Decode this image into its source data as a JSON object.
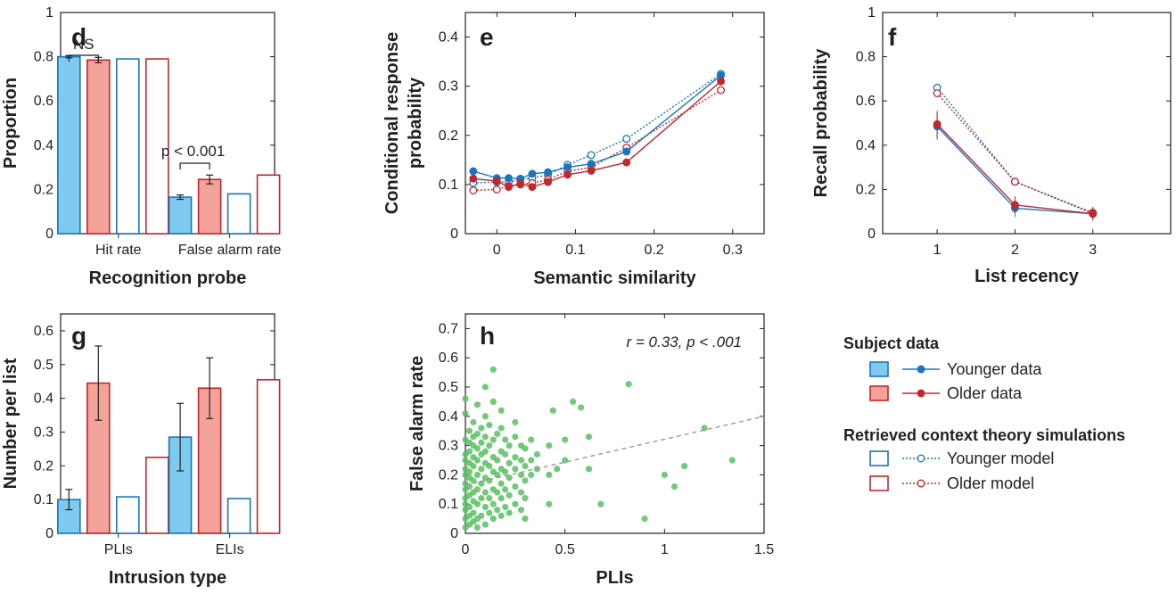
{
  "colors": {
    "young_fill": "#7ecbef",
    "young_edge": "#1b75bb",
    "old_fill": "#f4a39a",
    "old_edge": "#c1272d",
    "model_young": "#1b75bb",
    "model_old": "#c1272d",
    "scatter": "#5bbf63",
    "fit": "#999999"
  },
  "legend": {
    "subject_heading": "Subject data",
    "younger_data": "Younger data",
    "older_data": "Older data",
    "model_heading": "Retrieved context theory simulations",
    "younger_model": "Younger model",
    "older_model": "Older model"
  },
  "chart_data": [
    {
      "panel": "d",
      "type": "bar",
      "ylabel": "Proportion",
      "xlabel": "Recognition probe",
      "categories": [
        "Hit rate",
        "False alarm rate"
      ],
      "ylim": [
        0,
        1
      ],
      "yticks": [
        "0",
        "0.2",
        "0.4",
        "0.6",
        "0.8",
        "1"
      ],
      "series": [
        {
          "name": "Younger data",
          "values": [
            0.8,
            0.165
          ],
          "err": [
            0.005,
            0.01
          ]
        },
        {
          "name": "Older data",
          "values": [
            0.785,
            0.245
          ],
          "err": [
            0.012,
            0.02
          ]
        },
        {
          "name": "Younger model",
          "values": [
            0.79,
            0.18
          ]
        },
        {
          "name": "Older model",
          "values": [
            0.79,
            0.265
          ]
        }
      ],
      "annotations": [
        "NS",
        "p < 0.001"
      ]
    },
    {
      "panel": "e",
      "type": "line",
      "ylabel_line1": "Conditional response",
      "ylabel_line2": "probability",
      "xlabel": "Semantic similarity",
      "xlim": [
        -0.04,
        0.34
      ],
      "ylim": [
        0,
        0.45
      ],
      "xticks": [
        "0",
        "0.1",
        "0.2",
        "0.3"
      ],
      "yticks": [
        "0",
        "0.1",
        "0.2",
        "0.3",
        "0.4"
      ],
      "x": [
        -0.03,
        0,
        0.015,
        0.03,
        0.045,
        0.065,
        0.09,
        0.12,
        0.165,
        0.285
      ],
      "series": [
        {
          "name": "Younger data",
          "values": [
            0.127,
            0.113,
            0.113,
            0.112,
            0.122,
            0.125,
            0.135,
            0.142,
            0.167,
            0.322
          ]
        },
        {
          "name": "Older data",
          "values": [
            0.112,
            0.107,
            0.095,
            0.102,
            0.095,
            0.105,
            0.12,
            0.128,
            0.145,
            0.31
          ]
        },
        {
          "name": "Younger model",
          "values": [
            0.103,
            0.105,
            0.105,
            0.11,
            0.113,
            0.12,
            0.14,
            0.16,
            0.193,
            0.325
          ]
        },
        {
          "name": "Older model",
          "values": [
            0.088,
            0.09,
            0.097,
            0.1,
            0.103,
            0.11,
            0.127,
            0.135,
            0.175,
            0.292
          ]
        }
      ]
    },
    {
      "panel": "f",
      "type": "line",
      "ylabel": "Recall probability",
      "xlabel": "List recency",
      "xlim": [
        0.3,
        4.0
      ],
      "ylim": [
        0,
        1
      ],
      "xticks": [
        "1",
        "2",
        "3"
      ],
      "yticks": [
        "0",
        "0.2",
        "0.4",
        "0.6",
        "0.8",
        "1"
      ],
      "x": [
        1,
        2,
        3
      ],
      "series": [
        {
          "name": "Younger data",
          "values": [
            0.485,
            0.115,
            0.09
          ],
          "err": [
            0.06,
            0.04,
            0.03
          ]
        },
        {
          "name": "Older data",
          "values": [
            0.495,
            0.13,
            0.09
          ],
          "err": [
            0.06,
            0.04,
            0.03
          ]
        },
        {
          "name": "Younger model",
          "values": [
            0.66,
            0.235,
            0.09
          ]
        },
        {
          "name": "Older model",
          "values": [
            0.635,
            0.235,
            0.095
          ]
        }
      ]
    },
    {
      "panel": "g",
      "type": "bar",
      "ylabel": "Number per list",
      "xlabel": "Intrusion type",
      "categories": [
        "PLIs",
        "ELIs"
      ],
      "ylim": [
        0,
        0.65
      ],
      "yticks": [
        "0",
        "0.1",
        "0.2",
        "0.3",
        "0.4",
        "0.5",
        "0.6"
      ],
      "series": [
        {
          "name": "Younger data",
          "values": [
            0.1,
            0.285
          ],
          "err": [
            0.03,
            0.1
          ]
        },
        {
          "name": "Older data",
          "values": [
            0.445,
            0.43
          ],
          "err": [
            0.11,
            0.09
          ]
        },
        {
          "name": "Younger model",
          "values": [
            0.108,
            0.103
          ]
        },
        {
          "name": "Older model",
          "values": [
            0.225,
            0.455
          ]
        }
      ]
    },
    {
      "panel": "h",
      "type": "scatter",
      "ylabel": "False alarm rate",
      "xlabel": "PLIs",
      "xlim": [
        0,
        1.5
      ],
      "ylim": [
        0,
        0.75
      ],
      "xticks": [
        "0",
        "0.5",
        "1",
        "1.5"
      ],
      "yticks": [
        "0",
        "0.1",
        "0.2",
        "0.3",
        "0.4",
        "0.5",
        "0.6",
        "0.7"
      ],
      "annotation": "r = 0.33, p < .001",
      "fit": {
        "x": [
          0,
          1.5
        ],
        "y": [
          0.165,
          0.4
        ]
      },
      "points": [
        [
          0.0,
          0.02
        ],
        [
          0.0,
          0.05
        ],
        [
          0.0,
          0.08
        ],
        [
          0.0,
          0.1
        ],
        [
          0.0,
          0.12
        ],
        [
          0.0,
          0.15
        ],
        [
          0.0,
          0.17
        ],
        [
          0.0,
          0.2
        ],
        [
          0.0,
          0.22
        ],
        [
          0.0,
          0.25
        ],
        [
          0.0,
          0.27
        ],
        [
          0.0,
          0.46
        ],
        [
          0.0,
          0.41
        ],
        [
          0.0,
          0.32
        ],
        [
          0.02,
          0.03
        ],
        [
          0.02,
          0.06
        ],
        [
          0.02,
          0.09
        ],
        [
          0.02,
          0.13
        ],
        [
          0.02,
          0.16
        ],
        [
          0.02,
          0.19
        ],
        [
          0.02,
          0.21
        ],
        [
          0.02,
          0.24
        ],
        [
          0.02,
          0.28
        ],
        [
          0.02,
          0.31
        ],
        [
          0.02,
          0.35
        ],
        [
          0.04,
          0.04
        ],
        [
          0.04,
          0.07
        ],
        [
          0.04,
          0.11
        ],
        [
          0.04,
          0.14
        ],
        [
          0.04,
          0.18
        ],
        [
          0.04,
          0.23
        ],
        [
          0.04,
          0.26
        ],
        [
          0.04,
          0.3
        ],
        [
          0.04,
          0.33
        ],
        [
          0.04,
          0.38
        ],
        [
          0.06,
          0.02
        ],
        [
          0.06,
          0.05
        ],
        [
          0.06,
          0.1
        ],
        [
          0.06,
          0.15
        ],
        [
          0.06,
          0.2
        ],
        [
          0.06,
          0.25
        ],
        [
          0.06,
          0.29
        ],
        [
          0.06,
          0.34
        ],
        [
          0.06,
          0.44
        ],
        [
          0.08,
          0.06
        ],
        [
          0.08,
          0.12
        ],
        [
          0.08,
          0.17
        ],
        [
          0.08,
          0.22
        ],
        [
          0.08,
          0.27
        ],
        [
          0.08,
          0.31
        ],
        [
          0.08,
          0.36
        ],
        [
          0.1,
          0.03
        ],
        [
          0.1,
          0.09
        ],
        [
          0.1,
          0.14
        ],
        [
          0.1,
          0.19
        ],
        [
          0.1,
          0.24
        ],
        [
          0.1,
          0.28
        ],
        [
          0.1,
          0.33
        ],
        [
          0.1,
          0.4
        ],
        [
          0.1,
          0.5
        ],
        [
          0.12,
          0.07
        ],
        [
          0.12,
          0.12
        ],
        [
          0.12,
          0.18
        ],
        [
          0.12,
          0.23
        ],
        [
          0.12,
          0.3
        ],
        [
          0.12,
          0.37
        ],
        [
          0.14,
          0.05
        ],
        [
          0.14,
          0.1
        ],
        [
          0.14,
          0.15
        ],
        [
          0.14,
          0.21
        ],
        [
          0.14,
          0.26
        ],
        [
          0.14,
          0.32
        ],
        [
          0.14,
          0.45
        ],
        [
          0.14,
          0.56
        ],
        [
          0.16,
          0.08
        ],
        [
          0.16,
          0.14
        ],
        [
          0.16,
          0.2
        ],
        [
          0.16,
          0.25
        ],
        [
          0.16,
          0.34
        ],
        [
          0.18,
          0.06
        ],
        [
          0.18,
          0.12
        ],
        [
          0.18,
          0.17
        ],
        [
          0.18,
          0.22
        ],
        [
          0.18,
          0.28
        ],
        [
          0.18,
          0.36
        ],
        [
          0.18,
          0.42
        ],
        [
          0.2,
          0.09
        ],
        [
          0.2,
          0.15
        ],
        [
          0.2,
          0.21
        ],
        [
          0.2,
          0.27
        ],
        [
          0.2,
          0.32
        ],
        [
          0.22,
          0.07
        ],
        [
          0.22,
          0.13
        ],
        [
          0.22,
          0.19
        ],
        [
          0.22,
          0.24
        ],
        [
          0.22,
          0.3
        ],
        [
          0.25,
          0.1
        ],
        [
          0.25,
          0.16
        ],
        [
          0.25,
          0.22
        ],
        [
          0.25,
          0.26
        ],
        [
          0.25,
          0.33
        ],
        [
          0.25,
          0.38
        ],
        [
          0.28,
          0.08
        ],
        [
          0.28,
          0.14
        ],
        [
          0.28,
          0.2
        ],
        [
          0.28,
          0.25
        ],
        [
          0.28,
          0.3
        ],
        [
          0.3,
          0.05
        ],
        [
          0.3,
          0.12
        ],
        [
          0.3,
          0.18
        ],
        [
          0.3,
          0.23
        ],
        [
          0.3,
          0.29
        ],
        [
          0.33,
          0.2
        ],
        [
          0.33,
          0.25
        ],
        [
          0.33,
          0.32
        ],
        [
          0.36,
          0.22
        ],
        [
          0.36,
          0.27
        ],
        [
          0.42,
          0.1
        ],
        [
          0.42,
          0.2
        ],
        [
          0.42,
          0.3
        ],
        [
          0.44,
          0.42
        ],
        [
          0.46,
          0.22
        ],
        [
          0.5,
          0.25
        ],
        [
          0.5,
          0.32
        ],
        [
          0.54,
          0.45
        ],
        [
          0.58,
          0.43
        ],
        [
          0.62,
          0.22
        ],
        [
          0.62,
          0.33
        ],
        [
          0.68,
          0.1
        ],
        [
          0.82,
          0.51
        ],
        [
          0.9,
          0.05
        ],
        [
          1.0,
          0.2
        ],
        [
          1.05,
          0.16
        ],
        [
          1.1,
          0.23
        ],
        [
          1.2,
          0.36
        ],
        [
          1.34,
          0.25
        ]
      ]
    }
  ]
}
